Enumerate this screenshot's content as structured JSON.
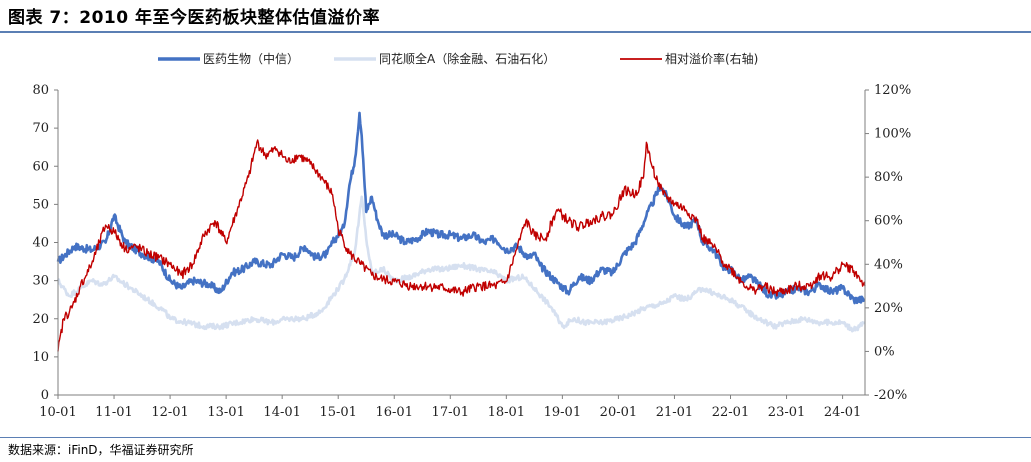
{
  "figure": {
    "title": "图表 7：2010 年至今医药板块整体估值溢价率",
    "source": "数据来源：iFinD，华福证券研究所"
  },
  "colors": {
    "pharma": "#4472c4",
    "market": "#d6e0f0",
    "premium": "#c00000",
    "axis": "#7f7f7f"
  },
  "chart_data": {
    "type": "line",
    "title": "2010 年至今医药板块整体估值溢价率",
    "x_ticks": [
      "10-01",
      "11-01",
      "12-01",
      "13-01",
      "14-01",
      "15-01",
      "16-01",
      "17-01",
      "18-01",
      "19-01",
      "20-01",
      "21-01",
      "22-01",
      "23-01",
      "24-01"
    ],
    "x_range": [
      2010.0,
      2024.4
    ],
    "y_left": {
      "range": [
        0,
        80
      ],
      "ticks": [
        0,
        10,
        20,
        30,
        40,
        50,
        60,
        70,
        80
      ],
      "labels": [
        "0",
        "10",
        "20",
        "30",
        "40",
        "50",
        "60",
        "70",
        "80"
      ]
    },
    "y_right": {
      "range": [
        -20,
        120
      ],
      "ticks": [
        -20,
        0,
        20,
        40,
        60,
        80,
        100,
        120
      ],
      "labels": [
        "-20%",
        "0%",
        "20%",
        "40%",
        "60%",
        "80%",
        "100%",
        "120%"
      ]
    },
    "legend": [
      "医药生物（中信）",
      "同花顺全A（除金融、石油石化）",
      "相对溢价率(右轴)"
    ],
    "series": [
      {
        "name": "医药生物（中信）",
        "axis": "left",
        "x": [
          2010.0,
          2010.3,
          2010.6,
          2010.85,
          2011.0,
          2011.2,
          2011.5,
          2011.8,
          2012.0,
          2012.2,
          2012.4,
          2012.7,
          2012.9,
          2013.1,
          2013.3,
          2013.5,
          2013.8,
          2014.0,
          2014.2,
          2014.4,
          2014.6,
          2014.8,
          2014.9,
          2015.1,
          2015.2,
          2015.3,
          2015.38,
          2015.42,
          2015.5,
          2015.6,
          2015.7,
          2015.8,
          2016.0,
          2016.2,
          2016.4,
          2016.6,
          2016.8,
          2017.0,
          2017.2,
          2017.4,
          2017.6,
          2017.8,
          2018.0,
          2018.2,
          2018.4,
          2018.5,
          2018.6,
          2018.8,
          2018.95,
          2019.1,
          2019.3,
          2019.5,
          2019.7,
          2019.9,
          2020.1,
          2020.3,
          2020.5,
          2020.6,
          2020.75,
          2020.9,
          2021.0,
          2021.2,
          2021.4,
          2021.5,
          2021.7,
          2021.9,
          2022.0,
          2022.2,
          2022.35,
          2022.5,
          2022.7,
          2022.9,
          2023.0,
          2023.2,
          2023.4,
          2023.6,
          2023.8,
          2024.0,
          2024.2,
          2024.4
        ],
        "y": [
          35,
          39,
          38,
          40,
          47,
          40,
          37,
          35,
          30,
          28,
          30,
          29,
          27,
          32,
          33,
          35,
          34,
          37,
          36,
          39,
          36,
          37,
          40,
          44,
          55,
          62,
          74,
          68,
          48,
          52,
          46,
          42,
          42,
          40,
          41,
          43,
          42,
          42,
          41,
          42,
          40,
          41,
          38,
          39,
          36,
          37,
          34,
          31,
          29,
          27,
          31,
          30,
          33,
          32,
          37,
          40,
          47,
          50,
          55,
          51,
          47,
          44,
          46,
          40,
          38,
          33,
          33,
          30,
          31,
          29,
          26,
          26,
          27,
          28,
          27,
          29,
          27,
          28,
          25,
          25
        ]
      },
      {
        "name": "同花顺全A（除金融、石油石化）",
        "axis": "left",
        "x": [
          2010.0,
          2010.2,
          2010.4,
          2010.6,
          2010.8,
          2011.0,
          2011.3,
          2011.6,
          2011.9,
          2012.0,
          2012.3,
          2012.6,
          2012.9,
          2013.2,
          2013.5,
          2013.8,
          2014.1,
          2014.4,
          2014.7,
          2014.9,
          2015.1,
          2015.3,
          2015.42,
          2015.5,
          2015.6,
          2015.8,
          2016.0,
          2016.3,
          2016.6,
          2016.9,
          2017.2,
          2017.5,
          2017.8,
          2018.0,
          2018.3,
          2018.5,
          2018.8,
          2019.0,
          2019.2,
          2019.4,
          2019.7,
          2020.0,
          2020.2,
          2020.5,
          2020.8,
          2021.0,
          2021.2,
          2021.5,
          2021.8,
          2022.0,
          2022.3,
          2022.5,
          2022.8,
          2023.0,
          2023.3,
          2023.6,
          2023.9,
          2024.0,
          2024.2,
          2024.4
        ],
        "y": [
          30,
          26,
          28,
          30,
          29,
          31,
          28,
          25,
          22,
          20,
          19,
          18,
          18,
          19,
          20,
          19,
          20,
          20,
          22,
          26,
          30,
          38,
          52,
          41,
          32,
          33,
          30,
          31,
          33,
          33,
          34,
          33,
          32,
          30,
          31,
          28,
          23,
          18,
          20,
          19,
          19,
          20,
          21,
          23,
          24,
          26,
          25,
          28,
          26,
          25,
          22,
          20,
          18,
          19,
          20,
          19,
          19,
          19,
          17,
          19
        ]
      },
      {
        "name": "相对溢价率(右轴)",
        "axis": "right",
        "x": [
          2010.0,
          2010.1,
          2010.25,
          2010.4,
          2010.6,
          2010.85,
          2011.0,
          2011.2,
          2011.4,
          2011.6,
          2011.8,
          2012.0,
          2012.2,
          2012.4,
          2012.6,
          2012.8,
          2013.0,
          2013.2,
          2013.4,
          2013.55,
          2013.7,
          2013.9,
          2014.1,
          2014.3,
          2014.5,
          2014.7,
          2014.9,
          2015.0,
          2015.2,
          2015.4,
          2015.6,
          2015.8,
          2016.0,
          2016.3,
          2016.6,
          2016.9,
          2017.2,
          2017.5,
          2017.8,
          2018.0,
          2018.2,
          2018.35,
          2018.5,
          2018.7,
          2018.9,
          2019.1,
          2019.3,
          2019.5,
          2019.7,
          2019.9,
          2020.1,
          2020.3,
          2020.45,
          2020.5,
          2020.6,
          2020.7,
          2020.8,
          2021.0,
          2021.2,
          2021.4,
          2021.5,
          2021.7,
          2021.9,
          2022.0,
          2022.2,
          2022.4,
          2022.6,
          2022.8,
          2023.0,
          2023.2,
          2023.4,
          2023.6,
          2023.8,
          2024.0,
          2024.2,
          2024.4
        ],
        "y": [
          0,
          15,
          20,
          30,
          40,
          58,
          55,
          47,
          48,
          45,
          43,
          40,
          35,
          40,
          53,
          60,
          50,
          65,
          80,
          96,
          90,
          93,
          87,
          90,
          86,
          80,
          72,
          56,
          45,
          40,
          35,
          33,
          32,
          30,
          30,
          29,
          27,
          30,
          30,
          32,
          48,
          60,
          53,
          52,
          65,
          60,
          57,
          60,
          62,
          63,
          74,
          72,
          80,
          96,
          85,
          78,
          72,
          68,
          65,
          60,
          52,
          48,
          40,
          38,
          32,
          28,
          30,
          27,
          28,
          30,
          30,
          35,
          34,
          40,
          37,
          30
        ]
      }
    ]
  }
}
